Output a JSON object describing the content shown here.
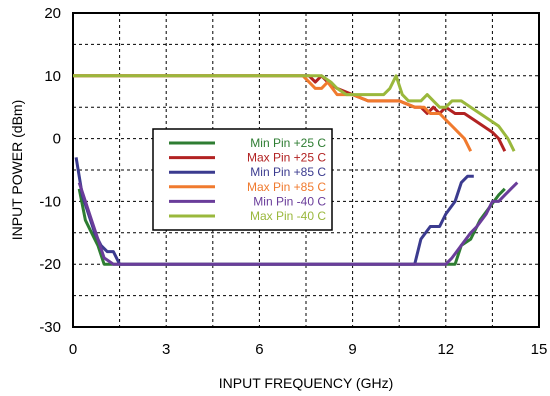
{
  "chart_data": {
    "type": "line",
    "xlabel": "INPUT FREQUENCY (GHz)",
    "ylabel": "INPUT POWER (dBm)",
    "xlim": [
      0,
      15
    ],
    "ylim": [
      -30,
      20
    ],
    "xticks": [
      0,
      3,
      6,
      9,
      12,
      15
    ],
    "yticks": [
      -30,
      -20,
      -10,
      0,
      10,
      20
    ],
    "x_tick_labels": [
      "0",
      "3",
      "6",
      "9",
      "12",
      "15"
    ],
    "y_tick_labels": [
      "-30",
      "-20",
      "-10",
      "0",
      "10",
      "20"
    ],
    "grid": "dotted",
    "legend_position": "center-left",
    "series": [
      {
        "name": "Min Pin +25 C",
        "color": "#2e7d32",
        "points": [
          [
            0.2,
            -8
          ],
          [
            0.4,
            -13
          ],
          [
            0.6,
            -15
          ],
          [
            0.8,
            -17
          ],
          [
            1.0,
            -20
          ],
          [
            1.5,
            -20
          ],
          [
            3,
            -20
          ],
          [
            6,
            -20
          ],
          [
            9,
            -20
          ],
          [
            12,
            -20
          ],
          [
            12.3,
            -20
          ],
          [
            12.5,
            -17
          ],
          [
            12.8,
            -16
          ],
          [
            13.1,
            -13
          ],
          [
            13.4,
            -11
          ],
          [
            13.7,
            -9
          ],
          [
            13.9,
            -8
          ]
        ]
      },
      {
        "name": "Max Pin +25 C",
        "color": "#b22222",
        "points": [
          [
            0,
            10
          ],
          [
            3,
            10
          ],
          [
            6,
            10
          ],
          [
            7.6,
            10
          ],
          [
            7.8,
            9
          ],
          [
            8.0,
            10
          ],
          [
            8.2,
            9
          ],
          [
            8.5,
            8
          ],
          [
            9,
            7
          ],
          [
            9.5,
            6
          ],
          [
            10,
            6
          ],
          [
            10.5,
            6
          ],
          [
            11,
            5
          ],
          [
            11.2,
            5
          ],
          [
            11.4,
            4
          ],
          [
            11.6,
            5
          ],
          [
            11.8,
            4
          ],
          [
            12,
            5
          ],
          [
            12.3,
            4
          ],
          [
            12.6,
            4
          ],
          [
            12.9,
            3
          ],
          [
            13.2,
            2
          ],
          [
            13.5,
            1
          ],
          [
            13.7,
            0
          ],
          [
            13.9,
            -2
          ]
        ]
      },
      {
        "name": "Min Pin +85 C",
        "color": "#3b3b8f",
        "points": [
          [
            0.1,
            -3
          ],
          [
            0.3,
            -9
          ],
          [
            0.5,
            -12
          ],
          [
            0.7,
            -15
          ],
          [
            0.9,
            -17
          ],
          [
            1.1,
            -18
          ],
          [
            1.3,
            -18
          ],
          [
            1.5,
            -20
          ],
          [
            3,
            -20
          ],
          [
            6,
            -20
          ],
          [
            9,
            -20
          ],
          [
            10.5,
            -20
          ],
          [
            11.0,
            -20
          ],
          [
            11.2,
            -16
          ],
          [
            11.5,
            -14
          ],
          [
            11.8,
            -14
          ],
          [
            12.0,
            -12
          ],
          [
            12.3,
            -10
          ],
          [
            12.5,
            -7
          ],
          [
            12.7,
            -6
          ],
          [
            12.9,
            -6
          ]
        ]
      },
      {
        "name": "Max Pin +85 C",
        "color": "#f07a2e",
        "points": [
          [
            0,
            10
          ],
          [
            3,
            10
          ],
          [
            6,
            10
          ],
          [
            7.4,
            10
          ],
          [
            7.6,
            9
          ],
          [
            7.8,
            8
          ],
          [
            8.0,
            8
          ],
          [
            8.2,
            9
          ],
          [
            8.5,
            7
          ],
          [
            9,
            7
          ],
          [
            9.5,
            6
          ],
          [
            10,
            6
          ],
          [
            10.5,
            6
          ],
          [
            11,
            5
          ],
          [
            11.3,
            5
          ],
          [
            11.5,
            4
          ],
          [
            11.8,
            4
          ],
          [
            12,
            3
          ],
          [
            12.2,
            2
          ],
          [
            12.4,
            1
          ],
          [
            12.6,
            0
          ],
          [
            12.8,
            -2
          ]
        ]
      },
      {
        "name": "Min Pin -40 C",
        "color": "#6a3d9a",
        "points": [
          [
            0.2,
            -7
          ],
          [
            0.4,
            -10
          ],
          [
            0.6,
            -13
          ],
          [
            0.8,
            -16
          ],
          [
            1.0,
            -19
          ],
          [
            1.3,
            -20
          ],
          [
            3,
            -20
          ],
          [
            6,
            -20
          ],
          [
            9,
            -20
          ],
          [
            12,
            -20
          ],
          [
            12.2,
            -19
          ],
          [
            12.5,
            -17
          ],
          [
            12.8,
            -15
          ],
          [
            13.0,
            -14
          ],
          [
            13.3,
            -12
          ],
          [
            13.5,
            -10
          ],
          [
            13.7,
            -10
          ],
          [
            13.9,
            -9
          ],
          [
            14.1,
            -8
          ],
          [
            14.3,
            -7
          ]
        ]
      },
      {
        "name": "Max Pin -40 C",
        "color": "#9ab83c",
        "points": [
          [
            0,
            10
          ],
          [
            3,
            10
          ],
          [
            6,
            10
          ],
          [
            8,
            10
          ],
          [
            8.3,
            9
          ],
          [
            8.5,
            8
          ],
          [
            8.8,
            7
          ],
          [
            9,
            7
          ],
          [
            9.5,
            7
          ],
          [
            10,
            7
          ],
          [
            10.2,
            8
          ],
          [
            10.4,
            10
          ],
          [
            10.6,
            7
          ],
          [
            10.8,
            6
          ],
          [
            11,
            6
          ],
          [
            11.2,
            6
          ],
          [
            11.4,
            7
          ],
          [
            11.6,
            6
          ],
          [
            11.8,
            5
          ],
          [
            12,
            5
          ],
          [
            12.2,
            6
          ],
          [
            12.5,
            6
          ],
          [
            12.8,
            5
          ],
          [
            13.1,
            4
          ],
          [
            13.4,
            3
          ],
          [
            13.7,
            2
          ],
          [
            14.0,
            0
          ],
          [
            14.2,
            -2
          ]
        ]
      }
    ]
  }
}
